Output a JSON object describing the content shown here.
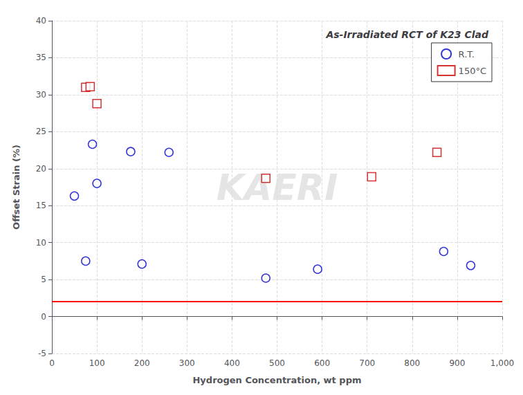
{
  "chart_data": {
    "type": "scatter",
    "title": "As-Irradiated RCT of K23 Clad",
    "xlabel": "Hydrogen Concentration, wt ppm",
    "ylabel": "Offset Strain (%)",
    "watermark": "KAERI",
    "series": [
      {
        "name": "R.T.",
        "color": "#0000cc",
        "marker": "circle",
        "x": [
          50,
          75,
          90,
          100,
          175,
          200,
          260,
          475,
          590,
          870,
          930
        ],
        "values": [
          16.3,
          7.5,
          23.3,
          18.0,
          22.3,
          7.1,
          22.2,
          5.2,
          6.4,
          8.8,
          6.9
        ]
      },
      {
        "name": "150°C",
        "color": "#cc0000",
        "marker": "square",
        "x": [
          75,
          85,
          100,
          475,
          710,
          855
        ],
        "values": [
          31.0,
          31.1,
          28.8,
          18.7,
          18.9,
          22.2
        ]
      }
    ],
    "hline": {
      "value": 2.0,
      "color": "#ff0000"
    },
    "xlim": [
      0,
      1000
    ],
    "ylim": [
      -5,
      40
    ],
    "xticks": [
      0,
      100,
      200,
      300,
      400,
      500,
      600,
      700,
      800,
      900,
      1000
    ],
    "yticks": [
      -5,
      0,
      5,
      10,
      15,
      20,
      25,
      30,
      35,
      40
    ],
    "grid": true,
    "legend": "upper right"
  }
}
